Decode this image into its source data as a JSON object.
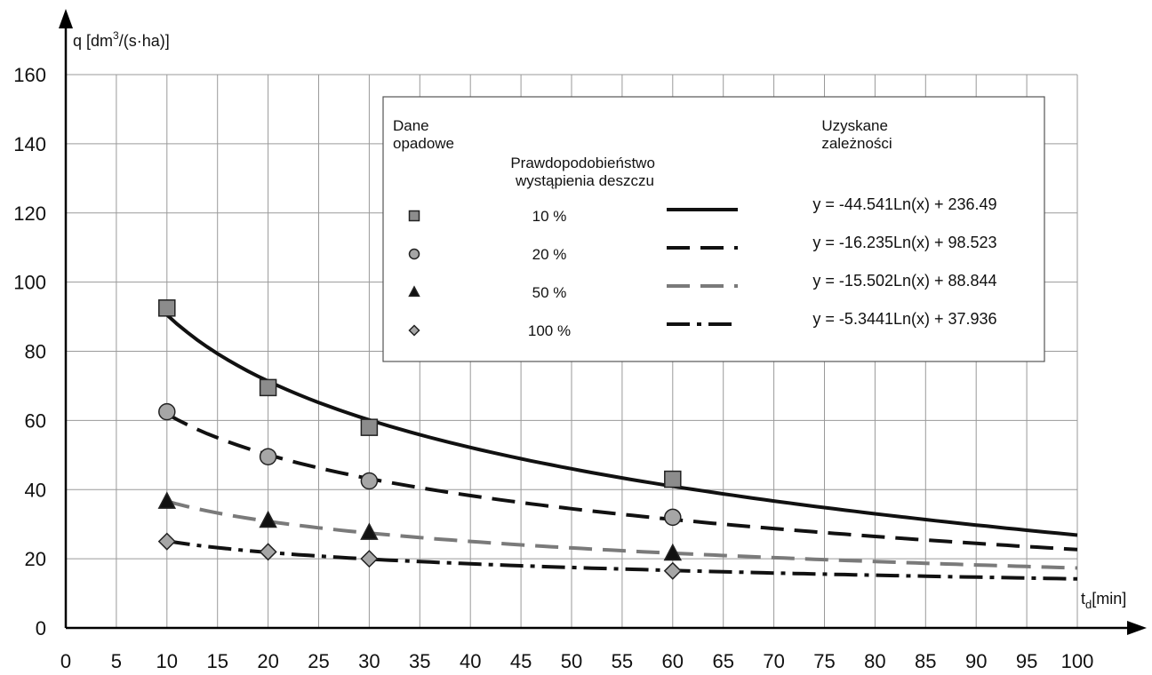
{
  "chart_data": {
    "type": "scatter",
    "ylabel_parts": {
      "main": "q [dm",
      "sup": "3",
      "rest": "/(s·ha)]"
    },
    "xlabel_parts": {
      "main": "t",
      "sub": "d",
      "rest": "[min]"
    },
    "xlim": [
      0,
      100
    ],
    "ylim": [
      0,
      160
    ],
    "x_ticks": [
      "0",
      "5",
      "10",
      "15",
      "20",
      "25",
      "30",
      "35",
      "40",
      "45",
      "50",
      "55",
      "60",
      "65",
      "70",
      "75",
      "80",
      "85",
      "90",
      "95",
      "100"
    ],
    "y_ticks": [
      "0",
      "20",
      "40",
      "60",
      "80",
      "100",
      "120",
      "140",
      "160"
    ],
    "grid": true,
    "legend": {
      "col_data_title": [
        "Dane",
        "opadowe"
      ],
      "col_prob_title": [
        "Prawdopodobieństwo",
        "wystąpienia deszczu"
      ],
      "col_eq_title": [
        "Uzyskane",
        "zależności"
      ],
      "placement": "top-right"
    },
    "series": [
      {
        "probability": "10 %",
        "marker": "square",
        "marker_color": "#8c8c8c",
        "line_color": "#111111",
        "line_style": "solid",
        "equation": "y = -44.541Ln(x) + 236.49",
        "x": [
          10,
          20,
          30,
          60
        ],
        "y": [
          92.5,
          69.5,
          58,
          43
        ]
      },
      {
        "probability": "20 %",
        "marker": "circle",
        "marker_color": "#a6a6a6",
        "line_color": "#111111",
        "line_style": "dashed",
        "equation": "y = -16.235Ln(x) + 98.523",
        "x": [
          10,
          20,
          30,
          60
        ],
        "y": [
          62.5,
          49.5,
          42.5,
          32
        ]
      },
      {
        "probability": "50 %",
        "marker": "triangle",
        "marker_color": "#111111",
        "line_color": "#7a7a7a",
        "line_style": "dashed",
        "equation": "y = -15.502Ln(x) + 88.844",
        "x": [
          10,
          20,
          30,
          60
        ],
        "y": [
          36.5,
          31,
          27.5,
          21.5
        ]
      },
      {
        "probability": "100 %",
        "marker": "diamond",
        "marker_color": "#a6a6a6",
        "line_color": "#111111",
        "line_style": "dashdot",
        "equation": "y = -5.3441Ln(x) + 37.936",
        "x": [
          10,
          20,
          30,
          60
        ],
        "y": [
          25,
          22,
          20,
          16.5
        ]
      }
    ]
  }
}
